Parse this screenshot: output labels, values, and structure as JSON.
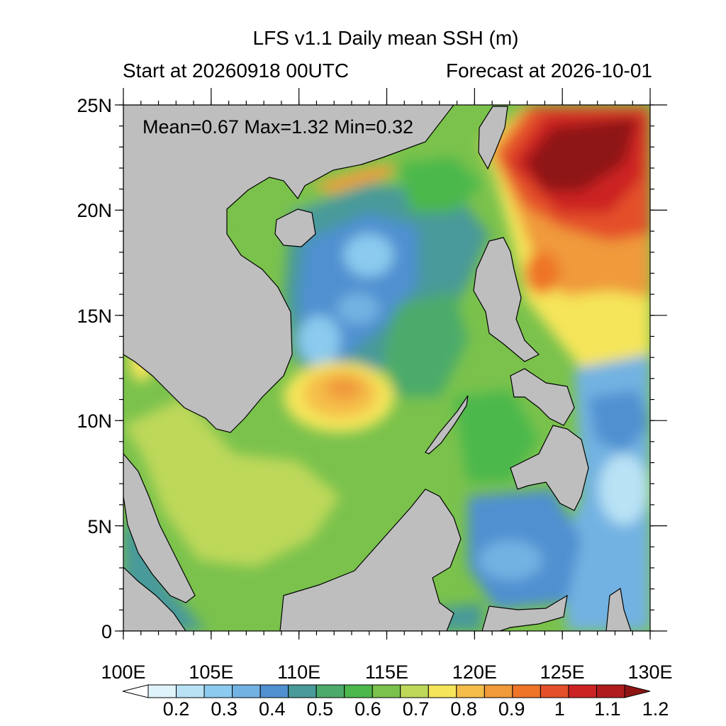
{
  "title": "LFS v1.1 Daily mean SSH (m)",
  "subtitle_left": "Start at 20260918 00UTC",
  "subtitle_right": "Forecast at 2026-10-01",
  "stats": "Mean=0.67  Max=1.32  Min=0.32",
  "map": {
    "lon_range": [
      100,
      130
    ],
    "lat_range": [
      0,
      25
    ],
    "land_color": "#bebebe",
    "regions": [
      "Mainland SE Asia",
      "Hainan",
      "Taiwan",
      "Malay Peninsula",
      "Sumatra",
      "Borneo",
      "Palawan",
      "Philippines",
      "Sulawesi"
    ]
  },
  "axes": {
    "x_ticks": [
      "100E",
      "105E",
      "110E",
      "115E",
      "120E",
      "125E",
      "130E"
    ],
    "y_ticks": [
      "25N",
      "20N",
      "15N",
      "10N",
      "5N",
      "0"
    ]
  },
  "colorbar": {
    "labels": [
      "0.2",
      "0.3",
      "0.4",
      "0.5",
      "0.6",
      "0.7",
      "0.8",
      "0.9",
      "1",
      "1.1",
      "1.2"
    ],
    "colors": [
      "#ffffff",
      "#dff3fb",
      "#b9e2f5",
      "#8ccbef",
      "#72b2e2",
      "#5090d0",
      "#4a9a9a",
      "#4cab6a",
      "#4cb84c",
      "#7ac24c",
      "#bed85a",
      "#f5e55a",
      "#f5bd4a",
      "#f09a3a",
      "#ee7428",
      "#e4502a",
      "#cc2424",
      "#b01c1e",
      "#8e1414"
    ]
  }
}
